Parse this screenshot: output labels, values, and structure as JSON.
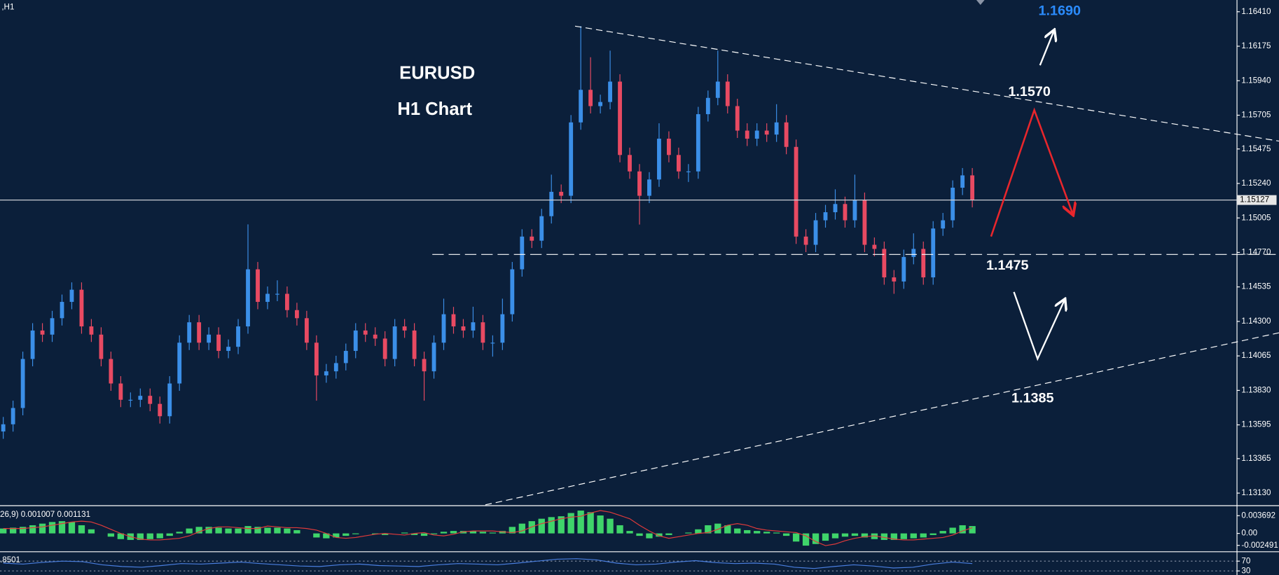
{
  "chart_data": [
    {
      "type": "candlestick",
      "label": ",H1",
      "title": "EURUSD",
      "subtitle": "H1 Chart",
      "up_color": "#3b8fe8",
      "down_color": "#e84a62",
      "open": [
        1.1355,
        1.13599,
        1.1371,
        1.14044,
        1.14238,
        1.1421,
        1.14322,
        1.14433,
        1.14516,
        1.14266,
        1.1421,
        1.14044,
        1.13877,
        1.13766,
        1.13766,
        1.13793,
        1.13738,
        1.13654,
        1.13877,
        1.14155,
        1.14294,
        1.14155,
        1.1421,
        1.14099,
        1.14127,
        1.14266,
        1.14655,
        1.14433,
        1.14488,
        1.14488,
        1.14377,
        1.14322,
        1.14155,
        1.13932,
        1.1396,
        1.14016,
        1.14099,
        1.14238,
        1.1421,
        1.14183,
        1.14044,
        1.14266,
        1.14238,
        1.14044,
        1.1396,
        1.14155,
        1.14349,
        1.14266,
        1.14238,
        1.14294,
        1.14155,
        1.14155,
        1.14349,
        1.14655,
        1.14878,
        1.1485,
        1.15017,
        1.15183,
        1.15156,
        1.15656,
        1.15878,
        1.15767,
        1.15795,
        1.15934,
        1.15434,
        1.15322,
        1.15156,
        1.15267,
        1.15545,
        1.15434,
        1.15322,
        1.15322,
        1.15712,
        1.15823,
        1.15934,
        1.15767,
        1.156,
        1.15545,
        1.156,
        1.15573,
        1.15656,
        1.15489,
        1.14878,
        1.14822,
        1.14989,
        1.15044,
        1.151,
        1.14989,
        1.15128,
        1.14822,
        1.14794,
        1.146,
        1.14572,
        1.14739,
        1.14794,
        1.146,
        1.14933,
        1.14989,
        1.15211,
        1.15295
      ],
      "high": [
        1.13649,
        1.1376,
        1.14094,
        1.14288,
        1.14288,
        1.14372,
        1.14483,
        1.14566,
        1.14566,
        1.14316,
        1.1426,
        1.14094,
        1.13927,
        1.13816,
        1.13843,
        1.13843,
        1.13788,
        1.13927,
        1.14205,
        1.14344,
        1.14344,
        1.1426,
        1.1426,
        1.14177,
        1.14316,
        1.14961,
        1.14705,
        1.14538,
        1.1458,
        1.14538,
        1.14427,
        1.14372,
        1.14205,
        1.1401,
        1.14066,
        1.14149,
        1.14288,
        1.14288,
        1.1426,
        1.14233,
        1.14316,
        1.14316,
        1.14288,
        1.14094,
        1.14205,
        1.14455,
        1.14399,
        1.14316,
        1.144,
        1.14344,
        1.14205,
        1.14455,
        1.14705,
        1.14928,
        1.14928,
        1.15067,
        1.153,
        1.15233,
        1.15706,
        1.16312,
        1.161,
        1.15845,
        1.16145,
        1.15984,
        1.15484,
        1.15372,
        1.15317,
        1.1565,
        1.15595,
        1.15484,
        1.15372,
        1.15762,
        1.15873,
        1.16145,
        1.15984,
        1.15817,
        1.1565,
        1.1565,
        1.1565,
        1.1578,
        1.15706,
        1.15539,
        1.14928,
        1.15039,
        1.15094,
        1.152,
        1.1515,
        1.153,
        1.15178,
        1.14872,
        1.14844,
        1.1465,
        1.14789,
        1.149,
        1.14844,
        1.14983,
        1.15039,
        1.15261,
        1.15345,
        1.15345
      ],
      "low": [
        1.135,
        1.13549,
        1.1366,
        1.13994,
        1.1416,
        1.1416,
        1.14272,
        1.14383,
        1.14216,
        1.1416,
        1.13994,
        1.13827,
        1.13716,
        1.13716,
        1.13716,
        1.13688,
        1.13604,
        1.13604,
        1.13827,
        1.14105,
        1.14105,
        1.14105,
        1.14049,
        1.14049,
        1.14077,
        1.14216,
        1.14383,
        1.14383,
        1.14438,
        1.14327,
        1.14272,
        1.14105,
        1.1376,
        1.13882,
        1.1391,
        1.13966,
        1.14049,
        1.1416,
        1.14133,
        1.13994,
        1.13994,
        1.14188,
        1.13994,
        1.1376,
        1.1391,
        1.14105,
        1.14216,
        1.14188,
        1.14188,
        1.14105,
        1.1406,
        1.14105,
        1.14299,
        1.14605,
        1.148,
        1.148,
        1.14967,
        1.15106,
        1.15106,
        1.15606,
        1.15717,
        1.15717,
        1.15745,
        1.15384,
        1.15272,
        1.1496,
        1.15106,
        1.15217,
        1.15384,
        1.15272,
        1.1525,
        1.15272,
        1.15662,
        1.15773,
        1.15717,
        1.1555,
        1.15495,
        1.15495,
        1.15523,
        1.15523,
        1.15439,
        1.14828,
        1.14772,
        1.14772,
        1.14939,
        1.14994,
        1.14939,
        1.14939,
        1.14772,
        1.14744,
        1.1455,
        1.14488,
        1.14522,
        1.14689,
        1.1455,
        1.1455,
        1.14883,
        1.14939,
        1.15161,
        1.15077
      ],
      "close": [
        1.13599,
        1.1371,
        1.14044,
        1.14238,
        1.1421,
        1.14322,
        1.14433,
        1.14516,
        1.14266,
        1.1421,
        1.14044,
        1.13877,
        1.13766,
        1.13766,
        1.13793,
        1.13738,
        1.13654,
        1.13877,
        1.14155,
        1.14294,
        1.14155,
        1.1421,
        1.14099,
        1.14127,
        1.14266,
        1.14655,
        1.14433,
        1.14488,
        1.14488,
        1.14377,
        1.14322,
        1.14155,
        1.13932,
        1.1396,
        1.14016,
        1.14099,
        1.14238,
        1.1421,
        1.14183,
        1.14044,
        1.14266,
        1.14238,
        1.14044,
        1.1396,
        1.14155,
        1.14349,
        1.14266,
        1.14238,
        1.14294,
        1.14155,
        1.14155,
        1.14349,
        1.14655,
        1.14878,
        1.1485,
        1.15017,
        1.15183,
        1.15156,
        1.15656,
        1.15878,
        1.15767,
        1.15795,
        1.15934,
        1.15434,
        1.15322,
        1.15156,
        1.15267,
        1.15545,
        1.15434,
        1.15322,
        1.15322,
        1.15712,
        1.15823,
        1.15934,
        1.15767,
        1.156,
        1.15545,
        1.156,
        1.15573,
        1.15656,
        1.15489,
        1.14878,
        1.14822,
        1.14989,
        1.15044,
        1.151,
        1.14989,
        1.15128,
        1.14822,
        1.14794,
        1.146,
        1.14572,
        1.14739,
        1.14794,
        1.146,
        1.14933,
        1.14989,
        1.15211,
        1.15295,
        1.15127
      ],
      "ylim": [
        1.1305,
        1.1649
      ],
      "yticks": [
        {
          "value": 1.1641,
          "label": "1.16410"
        },
        1.16175,
        {
          "value": 1.1594,
          "label": "1.15940"
        },
        1.15705,
        1.15475,
        {
          "value": 1.1524,
          "label": "1.15240"
        },
        1.15005,
        {
          "value": 1.1477,
          "label": "1.14770"
        },
        1.14535,
        {
          "value": 1.143,
          "label": "1.14300"
        },
        1.14065,
        {
          "value": 1.1383,
          "label": "1.13830"
        },
        1.13595,
        1.13365,
        {
          "value": 1.1313,
          "label": "1.13130"
        }
      ],
      "last_price": 1.15127,
      "annotations": [
        {
          "text": "1.1690",
          "color": "#2b8cff"
        },
        {
          "text": "1.1570",
          "color": "#ffffff"
        },
        {
          "text": "1.1475",
          "color": "#ffffff"
        },
        {
          "text": "1.1385",
          "color": "#ffffff"
        }
      ]
    },
    {
      "type": "bar",
      "label": "26,9) 0.001007 0.001131",
      "series": [
        {
          "color": "#3fd46a",
          "values": [
            0.00102,
            0.00119,
            0.00136,
            0.0017,
            0.00204,
            0.00238,
            0.00255,
            0.00238,
            0.0017,
            0.00085,
            0,
            -0.00068,
            -0.00119,
            -0.00136,
            -0.00136,
            -0.00119,
            -0.00102,
            -0.00051,
            0.00034,
            0.00102,
            0.00136,
            0.00136,
            0.00119,
            0.00102,
            0.00102,
            0.00153,
            0.00136,
            0.00119,
            0.00119,
            0.00102,
            0.00068,
            0,
            -0.00085,
            -0.00102,
            -0.00085,
            -0.00051,
            -0.00017,
            0,
            -0.00017,
            -0.00034,
            0,
            0.00017,
            -0.00034,
            -0.00051,
            -0.00017,
            0.00034,
            0.00051,
            0.00051,
            0.00051,
            0.00034,
            0.00017,
            0.00051,
            0.00136,
            0.00204,
            0.00255,
            0.00306,
            0.0034,
            0.00357,
            0.00425,
            0.00476,
            0.00442,
            0.00374,
            0.00306,
            0.0017,
            0.00051,
            -0.00051,
            -0.00102,
            -0.00068,
            -0.00034,
            0,
            0.00017,
            0.00085,
            0.0017,
            0.00204,
            0.0017,
            0.00102,
            0.00068,
            0.00051,
            0.00034,
            0.00017,
            -0.00051,
            -0.0017,
            -0.00255,
            -0.00221,
            -0.00153,
            -0.00102,
            -0.00068,
            -0.00051,
            -0.00085,
            -0.00119,
            -0.00136,
            -0.00136,
            -0.00119,
            -0.00102,
            -0.00085,
            -0.00034,
            0.00051,
            0.00119,
            0.0017,
            0.00153
          ]
        },
        {
          "type": "line",
          "color": "#e03a3a",
          "values": [
            0.00102,
            0.00102,
            0.00102,
            0.00119,
            0.00136,
            0.0017,
            0.00204,
            0.00238,
            0.00255,
            0.00238,
            0.0017,
            0.00085,
            0,
            -0.00068,
            -0.00119,
            -0.00136,
            -0.00136,
            -0.00119,
            -0.00102,
            -0.00051,
            0.00034,
            0.00102,
            0.00136,
            0.00136,
            0.00119,
            0.00102,
            0.00102,
            0.00153,
            0.00136,
            0.00119,
            0.00119,
            0.00102,
            0.00068,
            0,
            -0.00085,
            -0.00102,
            -0.00085,
            -0.00051,
            -0.00017,
            0,
            -0.00017,
            -0.00034,
            0,
            0.00017,
            -0.00034,
            -0.00051,
            -0.00017,
            0.00034,
            0.00051,
            0.00051,
            0.00051,
            0.00034,
            0.00017,
            0.00051,
            0.00136,
            0.00204,
            0.00255,
            0.00306,
            0.0034,
            0.00357,
            0.00425,
            0.00476,
            0.00442,
            0.00374,
            0.00306,
            0.0017,
            0.00051,
            -0.00051,
            -0.00102,
            -0.00068,
            -0.00034,
            0,
            0.00017,
            0.00085,
            0.0017,
            0.00204,
            0.0017,
            0.00102,
            0.00068,
            0.00051,
            0.00034,
            0.00017,
            -0.00051,
            -0.0017,
            -0.00255,
            -0.00221,
            -0.00153,
            -0.00102,
            -0.00068,
            -0.00051,
            -0.00085,
            -0.00119,
            -0.00136,
            -0.00136,
            -0.00119,
            -0.00102,
            -0.00085,
            -0.00034,
            0.00051,
            0.00119
          ]
        }
      ],
      "ylim": [
        -0.00357,
        0.00561
      ],
      "yticks": [
        0.003692,
        {
          "value": 0,
          "label": "0.00"
        },
        -0.002491
      ]
    },
    {
      "type": "line",
      "label": ".8501",
      "color": "#4a7fe0",
      "values": [
        62,
        58,
        65,
        70,
        68,
        55,
        48,
        45,
        52,
        60,
        58,
        62,
        66,
        60,
        55,
        50,
        48,
        55,
        58,
        52,
        50,
        48,
        55,
        60,
        58,
        55,
        62,
        70,
        78,
        80,
        75,
        62,
        55,
        58,
        66,
        72,
        64,
        60,
        62,
        58,
        45,
        40,
        48,
        55,
        50,
        42,
        45,
        58,
        66,
        60
      ],
      "ylim": [
        0,
        100
      ],
      "yticks": [
        70,
        30
      ],
      "grid": true
    }
  ]
}
